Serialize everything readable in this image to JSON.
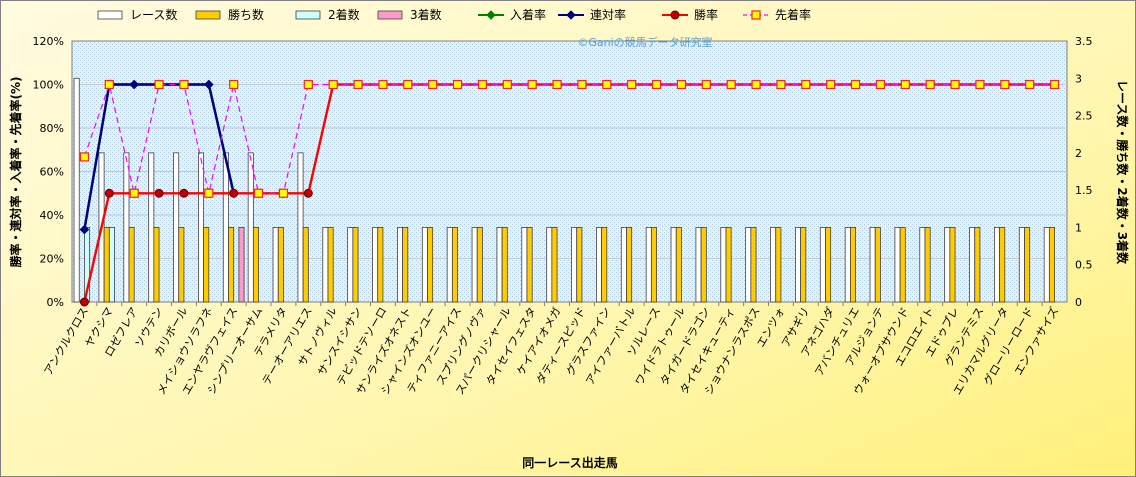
{
  "chart_data": {
    "type": "bar+line",
    "watermark": "©Ganiの競馬データ研究室",
    "xlabel": "同一レース出走馬",
    "ylabel_left": "勝率・連対率・入着率・先着率(%)",
    "ylabel_right": "レース数・勝ち数・2着数・3着数",
    "y_left_ticks": [
      "0%",
      "20%",
      "40%",
      "60%",
      "80%",
      "100%",
      "120%"
    ],
    "y_left_lim": [
      0,
      120
    ],
    "y_right_ticks": [
      "0",
      "0.5",
      "1",
      "1.5",
      "2",
      "2.5",
      "3",
      "3.5"
    ],
    "y_right_lim": [
      0,
      3.5
    ],
    "grid": true,
    "legend_position": "top",
    "categories": [
      "アンクルクロス",
      "ヤクシマ",
      "ロゼフレア",
      "ソウテン",
      "カリボール",
      "メイショウソラフネ",
      "エンヤラヴフェイス",
      "シンプリーオーサム",
      "テラメリタ",
      "テーオーアリエス",
      "サトノヴィル",
      "サンスイシサン",
      "テビッドテソーロ",
      "サンライズオネスト",
      "シャインズオンユー",
      "ティファニーアイス",
      "スプリングノヴァ",
      "スパークリシャール",
      "タイセイフェスタ",
      "ケイアイオメガ",
      "ダティースピッド",
      "グラスファイン",
      "アイファーバトル",
      "ソルレース",
      "ワイドラトゥール",
      "タイガードラゴン",
      "タイセイキューティ",
      "ショウナンラスポス",
      "エンツォ",
      "アサギリ",
      "アネゴハダ",
      "アバンチュリエ",
      "アルジョンテ",
      "ウォーオブサウンド",
      "エコロエイト",
      "エドゥプレ",
      "グランテミス",
      "エリカマルグリータ",
      "グローリーロード",
      "エンファサイズ"
    ],
    "series": [
      {
        "name": "レース数",
        "kind": "bar",
        "axis": "right",
        "color": "#ffffff",
        "edge": "#404040",
        "values": [
          3,
          2,
          2,
          2,
          2,
          2,
          2,
          2,
          1,
          2,
          1,
          1,
          1,
          1,
          1,
          1,
          1,
          1,
          1,
          1,
          1,
          1,
          1,
          1,
          1,
          1,
          1,
          1,
          1,
          1,
          1,
          1,
          1,
          1,
          1,
          1,
          1,
          1,
          1,
          1
        ]
      },
      {
        "name": "勝ち数",
        "kind": "bar",
        "axis": "right",
        "color": "#ffcc00",
        "edge": "#404040",
        "values": [
          0,
          1,
          1,
          1,
          1,
          1,
          1,
          1,
          1,
          1,
          1,
          1,
          1,
          1,
          1,
          1,
          1,
          1,
          1,
          1,
          1,
          1,
          1,
          1,
          1,
          1,
          1,
          1,
          1,
          1,
          1,
          1,
          1,
          1,
          1,
          1,
          1,
          1,
          1,
          1
        ]
      },
      {
        "name": "2着数",
        "kind": "bar",
        "axis": "right",
        "color": "#ccffff",
        "edge": "#404040",
        "values": [
          1,
          1,
          0,
          0,
          0,
          0,
          0,
          0,
          0,
          0,
          0,
          0,
          0,
          0,
          0,
          0,
          0,
          0,
          0,
          0,
          0,
          0,
          0,
          0,
          0,
          0,
          0,
          0,
          0,
          0,
          0,
          0,
          0,
          0,
          0,
          0,
          0,
          0,
          0,
          0
        ]
      },
      {
        "name": "3着数",
        "kind": "bar",
        "axis": "right",
        "color": "#ff99cc",
        "edge": "#404040",
        "values": [
          0,
          0,
          0,
          0,
          0,
          0,
          1,
          0,
          0,
          0,
          0,
          0,
          0,
          0,
          0,
          0,
          0,
          0,
          0,
          0,
          0,
          0,
          0,
          0,
          0,
          0,
          0,
          0,
          0,
          0,
          0,
          0,
          0,
          0,
          0,
          0,
          0,
          0,
          0,
          0
        ]
      },
      {
        "name": "入着率",
        "kind": "line",
        "axis": "left",
        "color": "#008000",
        "marker": "diamond",
        "dash": false,
        "values": [
          33.3,
          100,
          100,
          100,
          100,
          100,
          50,
          null,
          null,
          null,
          null,
          null,
          null,
          null,
          null,
          null,
          null,
          null,
          null,
          null,
          null,
          null,
          null,
          null,
          null,
          null,
          null,
          null,
          null,
          null,
          null,
          null,
          null,
          null,
          null,
          null,
          null,
          null,
          null,
          null
        ]
      },
      {
        "name": "連対率",
        "kind": "line",
        "axis": "left",
        "color": "#000080",
        "marker": "diamond",
        "dash": false,
        "values": [
          33.3,
          100,
          100,
          100,
          100,
          100,
          50,
          null,
          null,
          null,
          null,
          null,
          null,
          null,
          null,
          null,
          null,
          null,
          null,
          null,
          null,
          null,
          null,
          null,
          null,
          null,
          null,
          null,
          null,
          null,
          null,
          null,
          null,
          null,
          null,
          null,
          null,
          null,
          null,
          null
        ]
      },
      {
        "name": "勝率",
        "kind": "line",
        "axis": "left",
        "color": "#ff0000",
        "marker": "circle",
        "dash": false,
        "values": [
          0,
          50,
          50,
          50,
          50,
          50,
          50,
          50,
          50,
          50,
          100,
          100,
          100,
          100,
          100,
          100,
          100,
          100,
          100,
          100,
          100,
          100,
          100,
          100,
          100,
          100,
          100,
          100,
          100,
          100,
          100,
          100,
          100,
          100,
          100,
          100,
          100,
          100,
          100,
          100
        ]
      },
      {
        "name": "先着率",
        "kind": "line",
        "axis": "left",
        "color": "#ff00ff",
        "marker": "square",
        "dash": true,
        "values": [
          66.7,
          100,
          50,
          100,
          100,
          50,
          100,
          50,
          50,
          100,
          100,
          100,
          100,
          100,
          100,
          100,
          100,
          100,
          100,
          100,
          100,
          100,
          100,
          100,
          100,
          100,
          100,
          100,
          100,
          100,
          100,
          100,
          100,
          100,
          100,
          100,
          100,
          100,
          100,
          100
        ]
      }
    ]
  }
}
